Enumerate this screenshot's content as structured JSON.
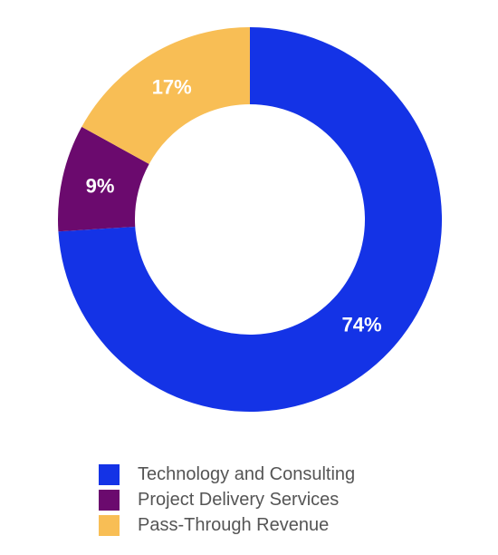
{
  "chart_data": {
    "type": "pie",
    "variant": "donut",
    "title": "",
    "categories": [
      "Technology and Consulting",
      "Project Delivery Services",
      "Pass-Through Revenue"
    ],
    "values": [
      74,
      9,
      17
    ],
    "value_labels": [
      "74%",
      "9%",
      "17%"
    ],
    "colors": [
      "#1433E6",
      "#6B0A6E",
      "#F8BE55"
    ],
    "legend_position": "bottom",
    "start_angle": "top, clockwise"
  }
}
